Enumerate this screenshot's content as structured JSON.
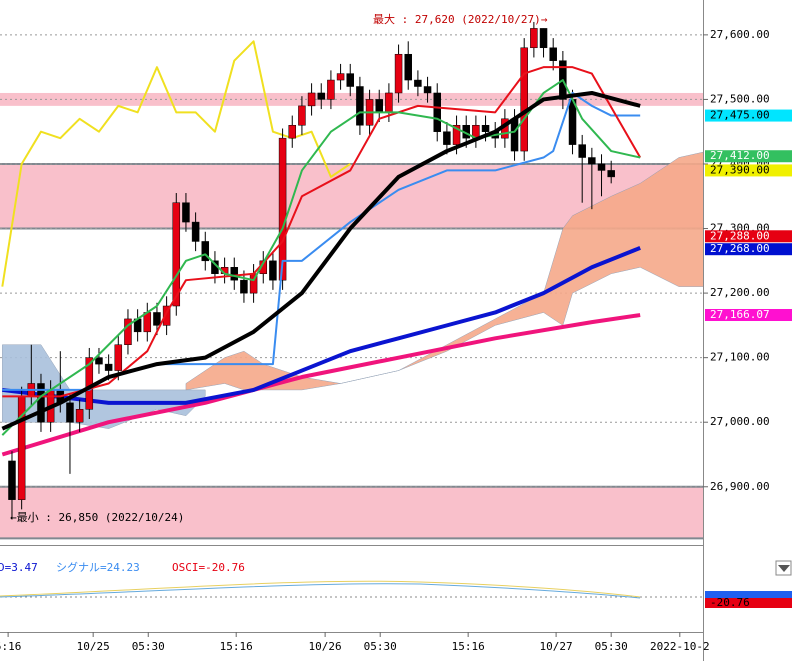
{
  "chart_data": {
    "type": "candlestick",
    "xlim": [
      -1.24,
      71.5
    ],
    "ylim": [
      26816,
      27654
    ],
    "yticks": [
      {
        "value": 26900,
        "label": "26,900.00"
      },
      {
        "value": 27000,
        "label": "27,000.00"
      },
      {
        "value": 27100,
        "label": "27,100.00"
      },
      {
        "value": 27200,
        "label": "27,200.00"
      },
      {
        "value": 27300,
        "label": "27,300.00"
      },
      {
        "value": 27400,
        "label": "27,400.00"
      },
      {
        "value": 27500,
        "label": "27,500.00"
      },
      {
        "value": 27600,
        "label": "27,600.00"
      }
    ],
    "xticks": [
      {
        "value": -0.4,
        "label": "5:16"
      },
      {
        "value": 8.4,
        "label": "10/25"
      },
      {
        "value": 14.1,
        "label": "05:30"
      },
      {
        "value": 23.2,
        "label": "15:16"
      },
      {
        "value": 32.4,
        "label": "10/26"
      },
      {
        "value": 38.1,
        "label": "05:30"
      },
      {
        "value": 47.2,
        "label": "15:16"
      },
      {
        "value": 56.3,
        "label": "10/27"
      },
      {
        "value": 62,
        "label": "05:30"
      },
      {
        "value": 69.1,
        "label": "2022-10-2"
      }
    ],
    "up_color": "#e60012",
    "down_color": "#000000",
    "open": [
      26940,
      26880,
      27040,
      27060,
      27000,
      27050,
      27030,
      27000,
      27020,
      27100,
      27090,
      27080,
      27120,
      27160,
      27140,
      27170,
      27150,
      27180,
      27340,
      27310,
      27280,
      27250,
      27230,
      27240,
      27220,
      27200,
      27230,
      27250,
      27220,
      27440,
      27460,
      27490,
      27510,
      27500,
      27530,
      27540,
      27520,
      27460,
      27500,
      27480,
      27510,
      27570,
      27530,
      27520,
      27510,
      27450,
      27430,
      27460,
      27440,
      27460,
      27450,
      27440,
      27470,
      27420,
      27580,
      27610,
      27580,
      27560,
      27500,
      27430,
      27410,
      27400,
      27390
    ],
    "high": [
      26955,
      27055,
      27120,
      27075,
      27065,
      27110,
      27045,
      27035,
      27115,
      27115,
      27105,
      27135,
      27175,
      27175,
      27185,
      27185,
      27195,
      27355,
      27355,
      27325,
      27295,
      27265,
      27255,
      27255,
      27235,
      27245,
      27265,
      27265,
      27455,
      27475,
      27505,
      27525,
      27525,
      27545,
      27555,
      27555,
      27535,
      27515,
      27515,
      27525,
      27585,
      27590,
      27545,
      27535,
      27525,
      27465,
      27475,
      27475,
      27475,
      27475,
      27465,
      27485,
      27485,
      27595,
      27620,
      27610,
      27595,
      27575,
      27515,
      27445,
      27425,
      27415,
      27405
    ],
    "low": [
      26850,
      26865,
      27025,
      26985,
      26985,
      27015,
      26920,
      26985,
      27005,
      27075,
      27065,
      27065,
      27105,
      27125,
      27125,
      27135,
      27135,
      27165,
      27295,
      27265,
      27235,
      27215,
      27215,
      27205,
      27185,
      27185,
      27215,
      27205,
      27205,
      27425,
      27445,
      27475,
      27485,
      27485,
      27515,
      27505,
      27445,
      27445,
      27465,
      27465,
      27495,
      27515,
      27505,
      27495,
      27435,
      27415,
      27415,
      27425,
      27425,
      27435,
      27425,
      27425,
      27405,
      27405,
      27565,
      27565,
      27545,
      27485,
      27415,
      27340,
      27330,
      27350,
      27370
    ],
    "close": [
      26880,
      27040,
      27060,
      27000,
      27050,
      27030,
      27000,
      27020,
      27100,
      27090,
      27080,
      27120,
      27160,
      27140,
      27170,
      27150,
      27180,
      27340,
      27310,
      27280,
      27250,
      27230,
      27240,
      27220,
      27200,
      27230,
      27250,
      27220,
      27440,
      27460,
      27490,
      27510,
      27500,
      27530,
      27540,
      27520,
      27460,
      27500,
      27480,
      27510,
      27570,
      27530,
      27520,
      27510,
      27450,
      27430,
      27460,
      27440,
      27460,
      27450,
      27440,
      27470,
      27420,
      27580,
      27610,
      27580,
      27560,
      27500,
      27430,
      27410,
      27400,
      27390,
      27380
    ],
    "bands": [
      {
        "from": 27490,
        "to": 27510,
        "border": false
      },
      {
        "from": 27300,
        "to": 27400,
        "border": true
      },
      {
        "from": 26820,
        "to": 26900,
        "border": true
      }
    ],
    "clouds": [
      {
        "color": "#a9c0dc",
        "x": [
          -1,
          3,
          6,
          10,
          15,
          18,
          20
        ],
        "upper": [
          27120,
          27120,
          27050,
          27050,
          27050,
          27050,
          27050
        ],
        "lower": [
          27000,
          27000,
          27000,
          26990,
          27020,
          27010,
          27040
        ]
      },
      {
        "color": "#f6a98a",
        "x": [
          18,
          22,
          24,
          26,
          30,
          34,
          40,
          45,
          50,
          55,
          57,
          58,
          62,
          65,
          69,
          72
        ],
        "upper": [
          27060,
          27100,
          27110,
          27090,
          27070,
          27060,
          27080,
          27120,
          27160,
          27200,
          27300,
          27320,
          27350,
          27370,
          27410,
          27420
        ],
        "lower": [
          27050,
          27060,
          27050,
          27050,
          27050,
          27060,
          27080,
          27110,
          27150,
          27170,
          27150,
          27200,
          27230,
          27240,
          27210,
          27210
        ]
      }
    ],
    "lines": [
      {
        "color": "#f0e020",
        "width": 2,
        "x": [
          -1,
          1,
          3,
          5,
          7,
          9,
          11,
          13,
          15,
          17,
          19,
          21,
          23,
          25,
          27,
          29,
          31,
          33,
          35
        ],
        "values": [
          27210,
          27400,
          27450,
          27440,
          27470,
          27450,
          27490,
          27480,
          27550,
          27480,
          27480,
          27450,
          27560,
          27590,
          27450,
          27440,
          27450,
          27380,
          27400
        ]
      },
      {
        "color": "#f0147c",
        "width": 4,
        "x": [
          -1,
          10,
          20,
          30,
          40,
          50,
          60,
          65
        ],
        "values": [
          26950,
          27000,
          27030,
          27070,
          27100,
          27130,
          27155,
          27166
        ]
      },
      {
        "color": "#0a14d0",
        "width": 4,
        "x": [
          -1,
          10,
          18,
          25,
          30,
          35,
          40,
          45,
          50,
          55,
          60,
          65
        ],
        "values": [
          27050,
          27030,
          27030,
          27050,
          27080,
          27110,
          27130,
          27150,
          27170,
          27200,
          27240,
          27270
        ]
      },
      {
        "color": "#3a8cf0",
        "width": 2,
        "x": [
          -1,
          8,
          10,
          15,
          22,
          27,
          28,
          30,
          35,
          40,
          45,
          50,
          55,
          56,
          58,
          60,
          62,
          65
        ],
        "values": [
          27050,
          27050,
          27070,
          27090,
          27090,
          27090,
          27250,
          27250,
          27310,
          27360,
          27390,
          27390,
          27410,
          27420,
          27510,
          27490,
          27475,
          27475
        ]
      },
      {
        "color": "#e8101a",
        "width": 2,
        "x": [
          -1,
          5,
          10,
          14,
          16,
          18,
          25,
          28,
          30,
          35,
          38,
          42,
          50,
          53,
          55,
          58,
          60,
          65
        ],
        "values": [
          27040,
          27040,
          27060,
          27110,
          27170,
          27220,
          27230,
          27280,
          27350,
          27390,
          27470,
          27490,
          27480,
          27540,
          27550,
          27550,
          27540,
          27410
        ]
      },
      {
        "color": "#30b850",
        "width": 2,
        "x": [
          -1,
          3,
          8,
          12,
          15,
          18,
          20,
          22,
          25,
          28,
          30,
          33,
          36,
          40,
          44,
          48,
          52,
          55,
          57,
          59,
          62,
          65
        ],
        "values": [
          26980,
          27040,
          27090,
          27150,
          27180,
          27250,
          27260,
          27230,
          27220,
          27300,
          27390,
          27450,
          27480,
          27480,
          27470,
          27440,
          27450,
          27510,
          27530,
          27470,
          27420,
          27410
        ]
      },
      {
        "color": "#000000",
        "width": 4,
        "x": [
          -1,
          5,
          10,
          15,
          20,
          25,
          30,
          35,
          40,
          45,
          50,
          55,
          60,
          65
        ],
        "values": [
          26990,
          27030,
          27070,
          27090,
          27100,
          27140,
          27200,
          27300,
          27380,
          27420,
          27450,
          27500,
          27510,
          27490
        ]
      }
    ],
    "price_tags": [
      {
        "value": 27475,
        "label": "27,475.00",
        "color": "#00e5ff",
        "text_color": "#000000"
      },
      {
        "value": 27412,
        "label": "27,412.00",
        "color": "#33c060",
        "text_color": "#ffffff"
      },
      {
        "value": 27390,
        "label": "27,390.00",
        "color": "#f0f000",
        "text_color": "#000000"
      },
      {
        "value": 27288,
        "label": "27,288.00",
        "color": "#e60012",
        "text_color": "#ffffff"
      },
      {
        "value": 27268,
        "label": "27,268.00",
        "color": "#0010d0",
        "text_color": "#ffffff"
      },
      {
        "value": 27166.07,
        "label": "27,166.07",
        "color": "#ff10d0",
        "text_color": "#ffffff"
      }
    ],
    "max_note": "最大 : 27,620 (2022/10/27)→",
    "min_note": "←最小 : 26,850 (2022/10/24)",
    "oscillator": {
      "macd_label": "D=3.47",
      "signal_label": "シグナル=24.23",
      "osci_label": "OSCI=-20.76",
      "tag": "-20.76"
    }
  }
}
